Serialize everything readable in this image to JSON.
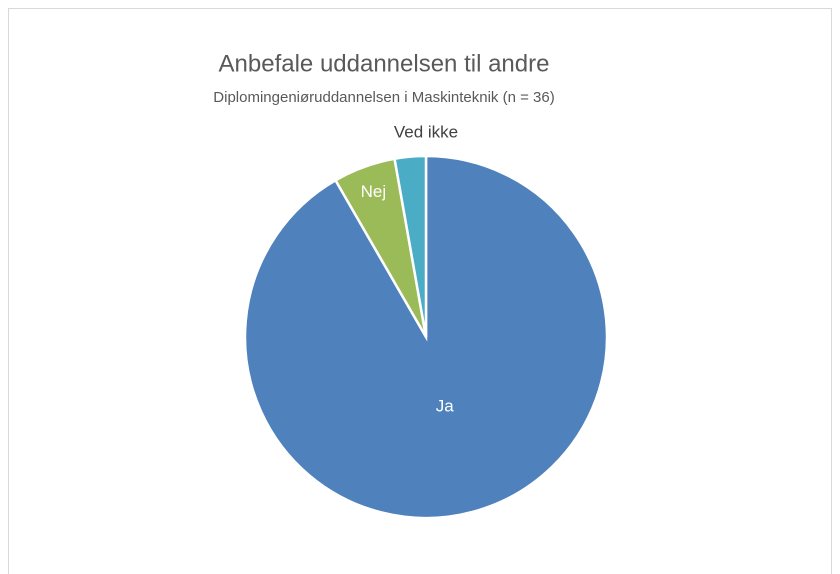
{
  "chart_data": {
    "type": "pie",
    "title": "Anbefale uddannelsen til andre",
    "subtitle": "Diplomingeniøruddannelsen i Maskinteknik (n = 36)",
    "categories": [
      "Ja",
      "Nej",
      "Ved ikke"
    ],
    "values": [
      33,
      2,
      1
    ],
    "colors": [
      "#4f81bd",
      "#9bbb59",
      "#4bacc6"
    ]
  }
}
